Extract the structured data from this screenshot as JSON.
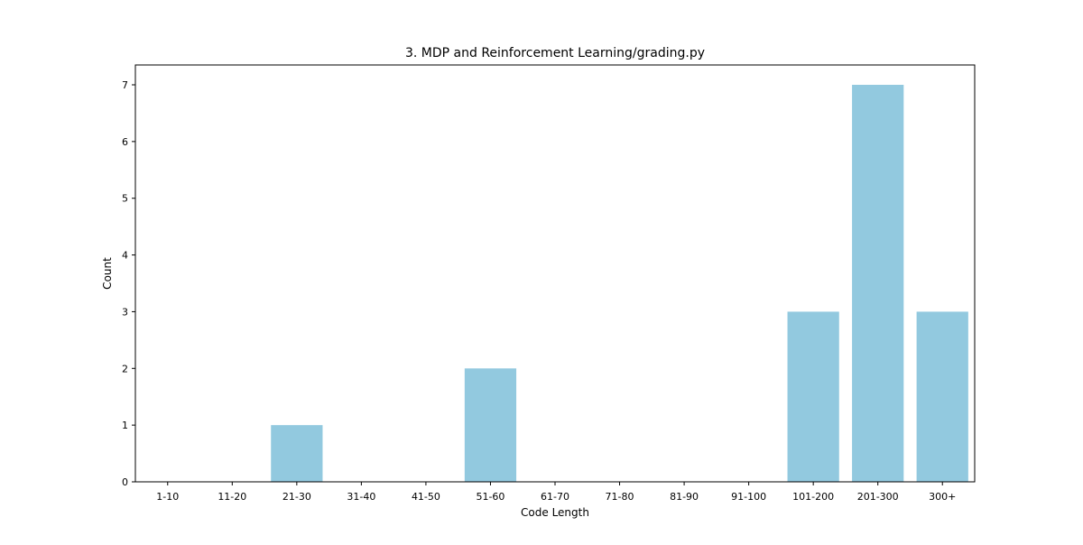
{
  "chart_data": {
    "type": "bar",
    "title": "3. MDP and Reinforcement Learning/grading.py",
    "xlabel": "Code Length",
    "ylabel": "Count",
    "categories": [
      "1-10",
      "11-20",
      "21-30",
      "31-40",
      "41-50",
      "51-60",
      "61-70",
      "71-80",
      "81-90",
      "91-100",
      "101-200",
      "201-300",
      "300+"
    ],
    "values": [
      0,
      0,
      1,
      0,
      0,
      2,
      0,
      0,
      0,
      0,
      3,
      7,
      3
    ],
    "ylim": [
      0,
      7.35
    ],
    "yticks": [
      0,
      1,
      2,
      3,
      4,
      5,
      6,
      7
    ],
    "grid": false,
    "legend": "none",
    "bar_color": "#92c9df",
    "axis_color": "#000000"
  }
}
